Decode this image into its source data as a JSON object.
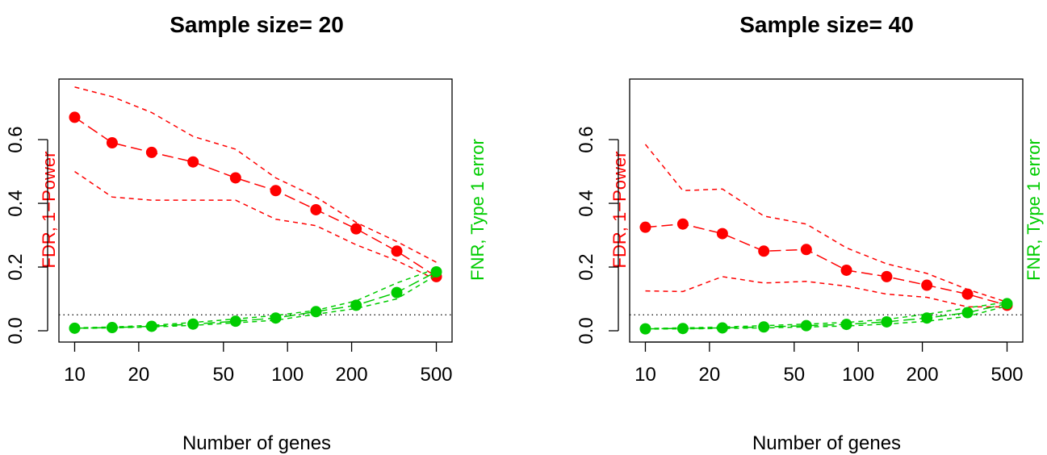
{
  "colors": {
    "fdr": "#ff0000",
    "fnr": "#00cc00",
    "axis": "#000000"
  },
  "chart_data": [
    {
      "type": "line",
      "title": "Sample size= 20",
      "xlabel": "Number of genes",
      "ylabel_left": "FDR, 1−Power",
      "ylabel_right": "FNR, Type 1 error",
      "x_scale": "log",
      "xlim": [
        10,
        500
      ],
      "ylim": [
        0,
        0.78
      ],
      "x_ticks": [
        10,
        20,
        50,
        100,
        200,
        500
      ],
      "y_ticks": [
        0.0,
        0.2,
        0.4,
        0.6
      ],
      "reference_line_y": 0.05,
      "x": [
        10,
        15,
        23,
        36,
        57,
        88,
        136,
        210,
        326,
        500
      ],
      "series": [
        {
          "color": "#ff0000",
          "style": "points-dashed",
          "values": [
            0.67,
            0.59,
            0.56,
            0.53,
            0.48,
            0.44,
            0.38,
            0.32,
            0.25,
            0.17
          ]
        },
        {
          "color": "#ff0000",
          "style": "dashed",
          "values": [
            0.765,
            0.735,
            0.685,
            0.61,
            0.57,
            0.48,
            0.42,
            0.34,
            0.28,
            0.215
          ]
        },
        {
          "color": "#ff0000",
          "style": "dashed",
          "values": [
            0.5,
            0.42,
            0.41,
            0.41,
            0.41,
            0.35,
            0.33,
            0.27,
            0.22,
            0.16
          ]
        },
        {
          "color": "#00cc00",
          "style": "points-dashed",
          "values": [
            0.008,
            0.01,
            0.014,
            0.021,
            0.03,
            0.04,
            0.06,
            0.08,
            0.12,
            0.185
          ]
        },
        {
          "color": "#00cc00",
          "style": "dashed",
          "values": [
            0.009,
            0.012,
            0.017,
            0.026,
            0.037,
            0.048,
            0.064,
            0.094,
            0.15,
            0.195
          ]
        },
        {
          "color": "#00cc00",
          "style": "dashed",
          "values": [
            0.007,
            0.009,
            0.012,
            0.017,
            0.025,
            0.033,
            0.052,
            0.07,
            0.1,
            0.175
          ]
        }
      ]
    },
    {
      "type": "line",
      "title": "Sample size= 40",
      "xlabel": "Number of genes",
      "ylabel_left": "FDR, 1−Power",
      "ylabel_right": "FNR, Type 1 error",
      "x_scale": "log",
      "xlim": [
        10,
        500
      ],
      "ylim": [
        0,
        0.78
      ],
      "x_ticks": [
        10,
        20,
        50,
        100,
        200,
        500
      ],
      "y_ticks": [
        0.0,
        0.2,
        0.4,
        0.6
      ],
      "reference_line_y": 0.05,
      "x": [
        10,
        15,
        23,
        36,
        57,
        88,
        136,
        210,
        326,
        500
      ],
      "series": [
        {
          "color": "#ff0000",
          "style": "points-dashed",
          "values": [
            0.325,
            0.335,
            0.305,
            0.25,
            0.255,
            0.19,
            0.17,
            0.143,
            0.115,
            0.08
          ]
        },
        {
          "color": "#ff0000",
          "style": "dashed",
          "values": [
            0.585,
            0.44,
            0.445,
            0.36,
            0.335,
            0.26,
            0.21,
            0.18,
            0.13,
            0.09
          ]
        },
        {
          "color": "#ff0000",
          "style": "dashed",
          "values": [
            0.125,
            0.123,
            0.17,
            0.15,
            0.155,
            0.14,
            0.115,
            0.105,
            0.075,
            0.075
          ]
        },
        {
          "color": "#00cc00",
          "style": "points-dashed",
          "values": [
            0.006,
            0.007,
            0.009,
            0.012,
            0.016,
            0.02,
            0.028,
            0.04,
            0.057,
            0.085
          ]
        },
        {
          "color": "#00cc00",
          "style": "dashed",
          "values": [
            0.007,
            0.009,
            0.012,
            0.016,
            0.021,
            0.026,
            0.036,
            0.052,
            0.072,
            0.09
          ]
        },
        {
          "color": "#00cc00",
          "style": "dashed",
          "values": [
            0.005,
            0.006,
            0.007,
            0.009,
            0.012,
            0.015,
            0.021,
            0.03,
            0.045,
            0.078
          ]
        }
      ]
    }
  ]
}
